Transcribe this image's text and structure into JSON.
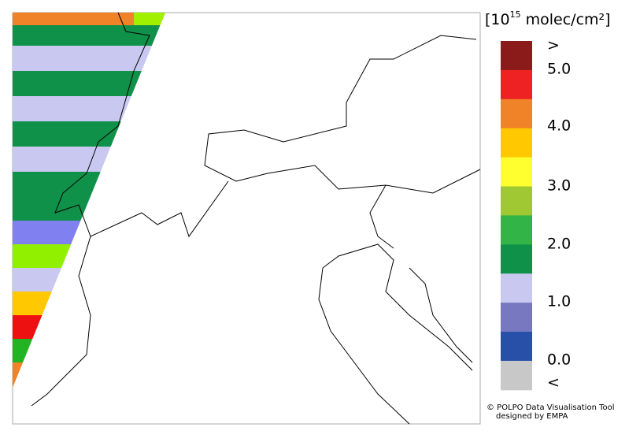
{
  "legend": {
    "title": {
      "open": "[10",
      "exponent": "15",
      "unit": " molec/cm²",
      "close": "]"
    },
    "colors": [
      "#8b1a1a",
      "#ee2222",
      "#f08228",
      "#ffc800",
      "#ffff30",
      "#a0c832",
      "#32b446",
      "#10914a",
      "#c8c8f0",
      "#7878c0",
      "#2850a8",
      "#c8c8c8"
    ],
    "labels": [
      ">",
      "5.0",
      "4.0",
      "3.0",
      "2.0",
      "1.0",
      "0.0",
      "<"
    ]
  },
  "credit": {
    "line1": "© POLPO Data Visualisation Tool",
    "line2": "designed by EMPA"
  }
}
